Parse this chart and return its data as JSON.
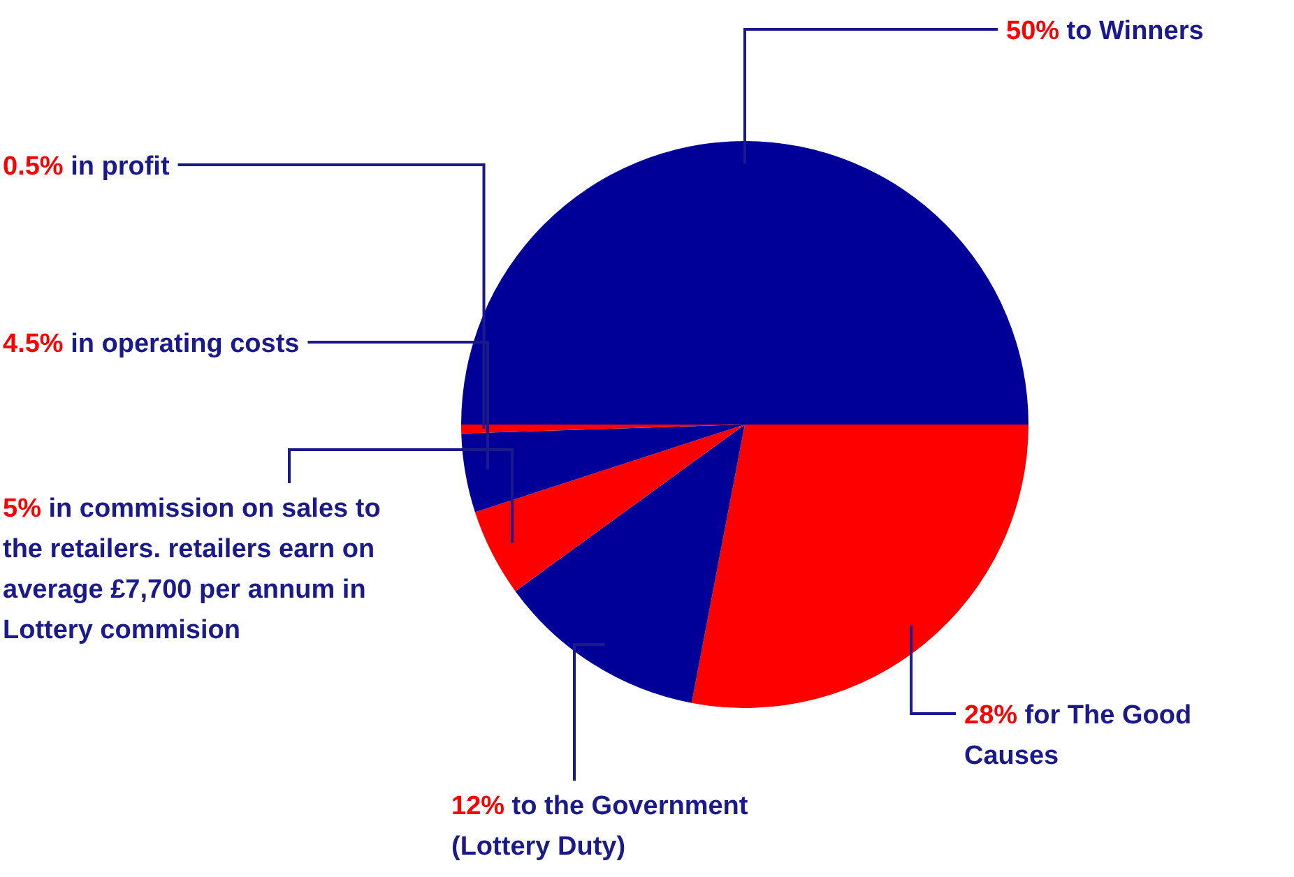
{
  "chart_data": {
    "type": "pie",
    "categories": [
      "28% for The Good Causes",
      "12% to the Government (Lottery Duty)",
      "5% in commission on sales to the retailers. retailers earn on average £7,700 per annum in Lottery commision",
      "4.5% in operating costs",
      "0.5% in profit",
      "50% to Winners"
    ],
    "values": [
      28,
      12,
      5,
      4.5,
      0.5,
      50
    ],
    "colors": [
      "#ff0000",
      "#000099",
      "#ff0000",
      "#000099",
      "#ff0000",
      "#000099"
    ]
  }
}
